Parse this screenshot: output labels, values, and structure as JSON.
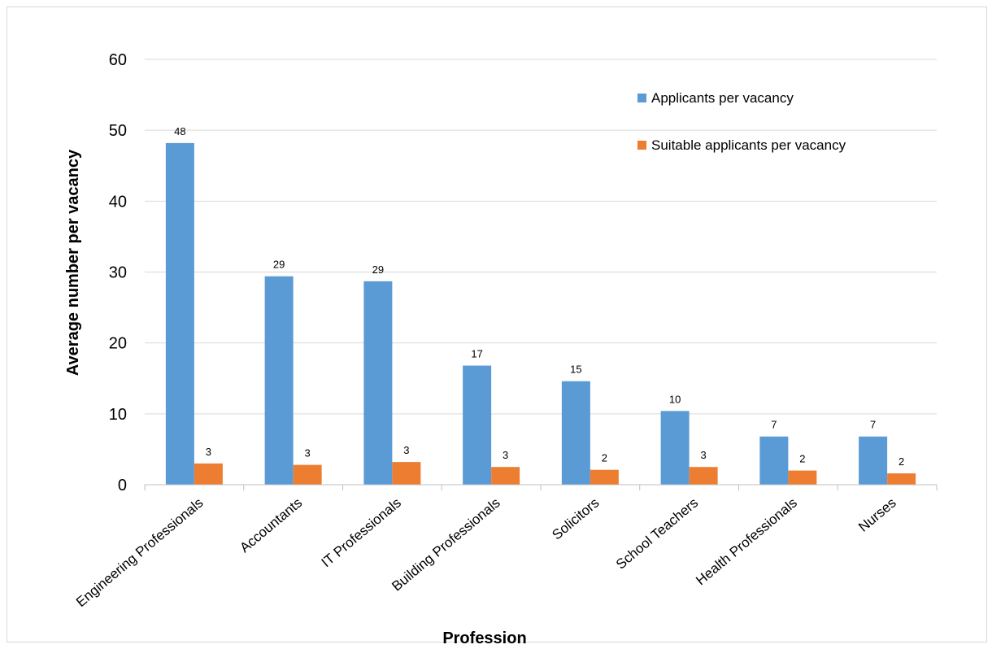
{
  "chart_data": {
    "type": "bar",
    "xlabel": "Profession",
    "ylabel": "Average number per vacancy",
    "ylim": [
      0,
      60
    ],
    "yticks": [
      0,
      10,
      20,
      30,
      40,
      50,
      60
    ],
    "grid": true,
    "legend_position": "top-right",
    "categories": [
      "Engineering Professionals",
      "Accountants",
      "IT Professionals",
      "Building Professionals",
      "Solicitors",
      "School Teachers",
      "Health Professionals",
      "Nurses"
    ],
    "series": [
      {
        "name": "Applicants per vacancy",
        "color": "#5B9BD5",
        "values": [
          48.2,
          29.4,
          28.7,
          16.8,
          14.6,
          10.4,
          6.8,
          6.8
        ],
        "labels": [
          "48",
          "29",
          "29",
          "17",
          "15",
          "10",
          "7",
          "7"
        ]
      },
      {
        "name": "Suitable applicants per vacancy",
        "color": "#ED7D31",
        "values": [
          3.0,
          2.8,
          3.2,
          2.5,
          2.1,
          2.5,
          2.0,
          1.6
        ],
        "labels": [
          "3",
          "3",
          "3",
          "3",
          "2",
          "3",
          "2",
          "2"
        ]
      }
    ]
  }
}
